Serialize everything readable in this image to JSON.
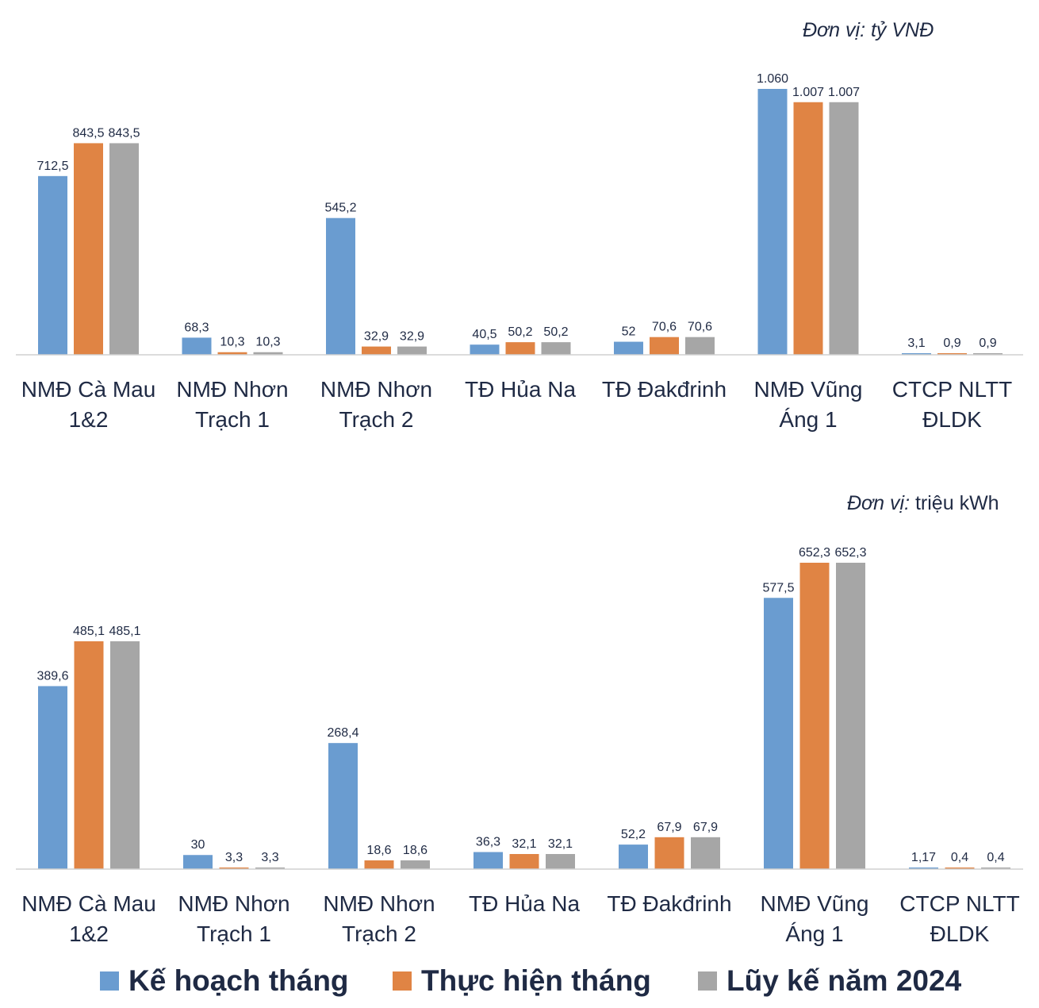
{
  "colors": {
    "plan": "#6a9cd0",
    "actual": "#e08444",
    "cumulative": "#a6a6a6"
  },
  "legend": {
    "plan": "Kế hoạch tháng",
    "actual": "Thực hiện tháng",
    "cumulative": "Lũy kế năm 2024"
  },
  "chart_data": [
    {
      "type": "bar",
      "unit_prefix": "Đơn vị:",
      "unit": "tỷ VNĐ",
      "categories": [
        [
          "NMĐ Cà Mau",
          "1&2"
        ],
        [
          "NMĐ Nhơn",
          "Trạch 1"
        ],
        [
          "NMĐ Nhơn",
          "Trạch 2"
        ],
        [
          "TĐ Hủa Na"
        ],
        [
          "TĐ Đakđrinh"
        ],
        [
          "NMĐ Vũng",
          "Áng 1"
        ],
        [
          "CTCP NLTT",
          "ĐLDK"
        ]
      ],
      "series": [
        {
          "name": "Kế hoạch tháng",
          "key": "plan",
          "values": [
            712.5,
            68.3,
            545.2,
            40.5,
            52,
            1060,
            3.1
          ],
          "labels": [
            "712,5",
            "68,3",
            "545,2",
            "40,5",
            "52",
            "1.060",
            "3,1"
          ]
        },
        {
          "name": "Thực hiện tháng",
          "key": "actual",
          "values": [
            843.5,
            10.3,
            32.9,
            50.2,
            70.6,
            1007,
            0.9
          ],
          "labels": [
            "843,5",
            "10,3",
            "32,9",
            "50,2",
            "70,6",
            "1.007",
            "0,9"
          ]
        },
        {
          "name": "Lũy kế năm 2024",
          "key": "cumulative",
          "values": [
            843.5,
            10.3,
            32.9,
            50.2,
            70.6,
            1007,
            0.9
          ],
          "labels": [
            "843,5",
            "10,3",
            "32,9",
            "50,2",
            "70,6",
            "1.007",
            "0,9"
          ]
        }
      ],
      "ylim": [
        0,
        1060
      ]
    },
    {
      "type": "bar",
      "unit_prefix": "Đơn vị:",
      "unit": "triệu kWh",
      "categories": [
        [
          "NMĐ Cà Mau",
          "1&2"
        ],
        [
          "NMĐ Nhơn",
          "Trạch 1"
        ],
        [
          "NMĐ Nhơn",
          "Trạch 2"
        ],
        [
          "TĐ Hủa Na"
        ],
        [
          "TĐ Đakđrinh"
        ],
        [
          "NMĐ Vũng",
          "Áng 1"
        ],
        [
          "CTCP NLTT",
          "ĐLDK"
        ]
      ],
      "series": [
        {
          "name": "Kế hoạch tháng",
          "key": "plan",
          "values": [
            389.6,
            30,
            268.4,
            36.3,
            52.2,
            577.5,
            1.17
          ],
          "labels": [
            "389,6",
            "30",
            "268,4",
            "36,3",
            "52,2",
            "577,5",
            "1,17"
          ]
        },
        {
          "name": "Thực hiện tháng",
          "key": "actual",
          "values": [
            485.1,
            3.3,
            18.6,
            32.1,
            67.9,
            652.3,
            0.4
          ],
          "labels": [
            "485,1",
            "3,3",
            "18,6",
            "32,1",
            "67,9",
            "652,3",
            "0,4"
          ]
        },
        {
          "name": "Lũy kế năm 2024",
          "key": "cumulative",
          "values": [
            485.1,
            3.3,
            18.6,
            32.1,
            67.9,
            652.3,
            0.4
          ],
          "labels": [
            "485,1",
            "3,3",
            "18,6",
            "32,1",
            "67,9",
            "652,3",
            "0,4"
          ]
        }
      ],
      "ylim": [
        0,
        652.3
      ]
    }
  ]
}
